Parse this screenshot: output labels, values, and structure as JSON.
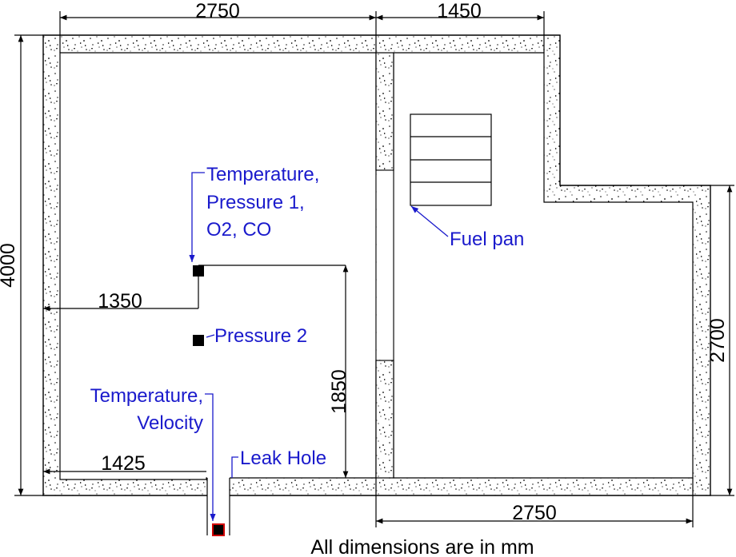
{
  "dimensions": {
    "top_left": "2750",
    "top_right": "1450",
    "left_height": "4000",
    "right_height": "2700",
    "bottom_right": "2750",
    "inner_1350": "1350",
    "inner_1425": "1425",
    "inner_1850": "1850"
  },
  "labels": {
    "sensor1_line1": "Temperature,",
    "sensor1_line2": "Pressure 1,",
    "sensor1_line3": "O2, CO",
    "sensor2": "Pressure 2",
    "sensor3_line1": "Temperature,",
    "sensor3_line2": "Velocity",
    "leak_hole": "Leak Hole",
    "fuel_pan": "Fuel pan"
  },
  "footer": {
    "note": "All dimensions are in mm"
  },
  "colors": {
    "label_blue": "#1a1acc",
    "leak_red": "#d00000",
    "wall_outline": "#000000"
  }
}
